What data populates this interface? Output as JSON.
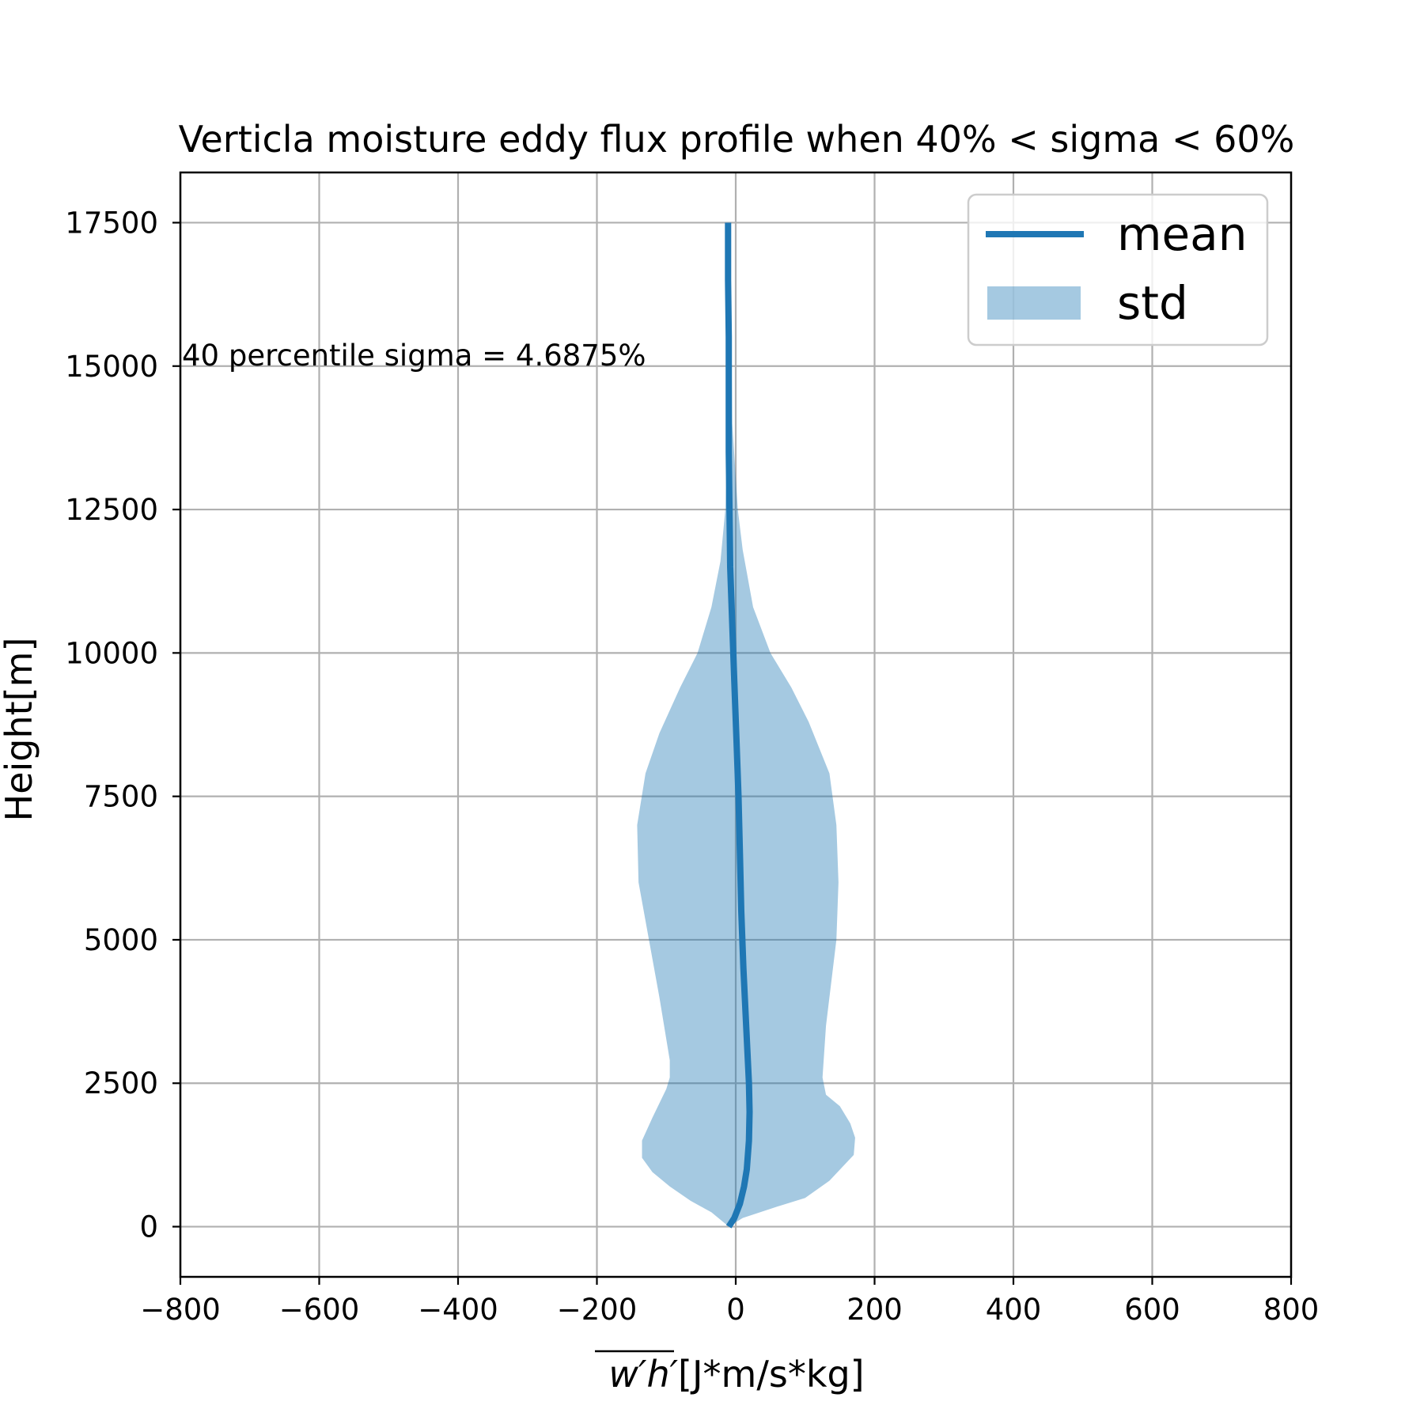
{
  "chart_data": {
    "type": "line",
    "title": "Verticla moisture eddy flux profile when 40% < sigma < 60%",
    "xlabel_overline": "w′h′",
    "xlabel_units": "[J*m/s*kg]",
    "ylabel": "Height[m]",
    "xlim": [
      -800,
      800
    ],
    "ylim": [
      -875,
      18375
    ],
    "xticks": [
      -800,
      -600,
      -400,
      -200,
      0,
      200,
      400,
      600,
      800
    ],
    "xtick_labels": [
      "−800",
      "−600",
      "−400",
      "−200",
      "0",
      "200",
      "400",
      "600",
      "800"
    ],
    "yticks": [
      0,
      2500,
      5000,
      7500,
      10000,
      12500,
      15000,
      17500
    ],
    "ytick_labels": [
      "0",
      "2500",
      "5000",
      "7500",
      "10000",
      "12500",
      "15000",
      "17500"
    ],
    "grid": true,
    "legend_position": "top-right",
    "annotation": "40 percentile sigma = 4.6875%",
    "series": [
      {
        "name": "mean",
        "kind": "line",
        "color": "#1f77b4",
        "points": [
          [
            -10,
            0
          ],
          [
            -2,
            150
          ],
          [
            6,
            400
          ],
          [
            12,
            700
          ],
          [
            16,
            1000
          ],
          [
            19,
            1500
          ],
          [
            20,
            2000
          ],
          [
            19,
            2500
          ],
          [
            15,
            3500
          ],
          [
            11,
            4500
          ],
          [
            8,
            5500
          ],
          [
            6,
            6500
          ],
          [
            4,
            7500
          ],
          [
            1,
            8500
          ],
          [
            -2,
            9500
          ],
          [
            -5,
            10500
          ],
          [
            -8,
            11500
          ],
          [
            -9,
            12500
          ],
          [
            -10,
            13500
          ],
          [
            -10,
            14500
          ],
          [
            -10,
            15500
          ],
          [
            -11,
            16500
          ],
          [
            -11,
            17500
          ]
        ]
      },
      {
        "name": "std",
        "kind": "band",
        "color": "#1f77b4",
        "opacity": 0.4,
        "upper": [
          [
            -10,
            0
          ],
          [
            10,
            150
          ],
          [
            60,
            350
          ],
          [
            100,
            500
          ],
          [
            135,
            800
          ],
          [
            170,
            1250
          ],
          [
            172,
            1550
          ],
          [
            165,
            1800
          ],
          [
            150,
            2100
          ],
          [
            130,
            2300
          ],
          [
            125,
            2600
          ],
          [
            130,
            3500
          ],
          [
            140,
            4500
          ],
          [
            145,
            5000
          ],
          [
            148,
            6000
          ],
          [
            145,
            7000
          ],
          [
            135,
            7900
          ],
          [
            105,
            8800
          ],
          [
            80,
            9400
          ],
          [
            50,
            10000
          ],
          [
            25,
            10800
          ],
          [
            10,
            11800
          ],
          [
            3,
            12500
          ],
          [
            -5,
            14000
          ],
          [
            -8,
            17500
          ]
        ],
        "lower": [
          [
            -10,
            0
          ],
          [
            -35,
            250
          ],
          [
            -65,
            450
          ],
          [
            -95,
            700
          ],
          [
            -120,
            950
          ],
          [
            -135,
            1200
          ],
          [
            -135,
            1500
          ],
          [
            -120,
            1900
          ],
          [
            -100,
            2400
          ],
          [
            -95,
            2600
          ],
          [
            -95,
            2900
          ],
          [
            -110,
            4000
          ],
          [
            -125,
            5000
          ],
          [
            -140,
            6000
          ],
          [
            -142,
            7000
          ],
          [
            -130,
            7900
          ],
          [
            -110,
            8600
          ],
          [
            -80,
            9400
          ],
          [
            -55,
            10000
          ],
          [
            -35,
            10800
          ],
          [
            -22,
            11600
          ],
          [
            -15,
            12500
          ],
          [
            -12,
            14000
          ],
          [
            -13,
            17500
          ]
        ]
      }
    ]
  }
}
